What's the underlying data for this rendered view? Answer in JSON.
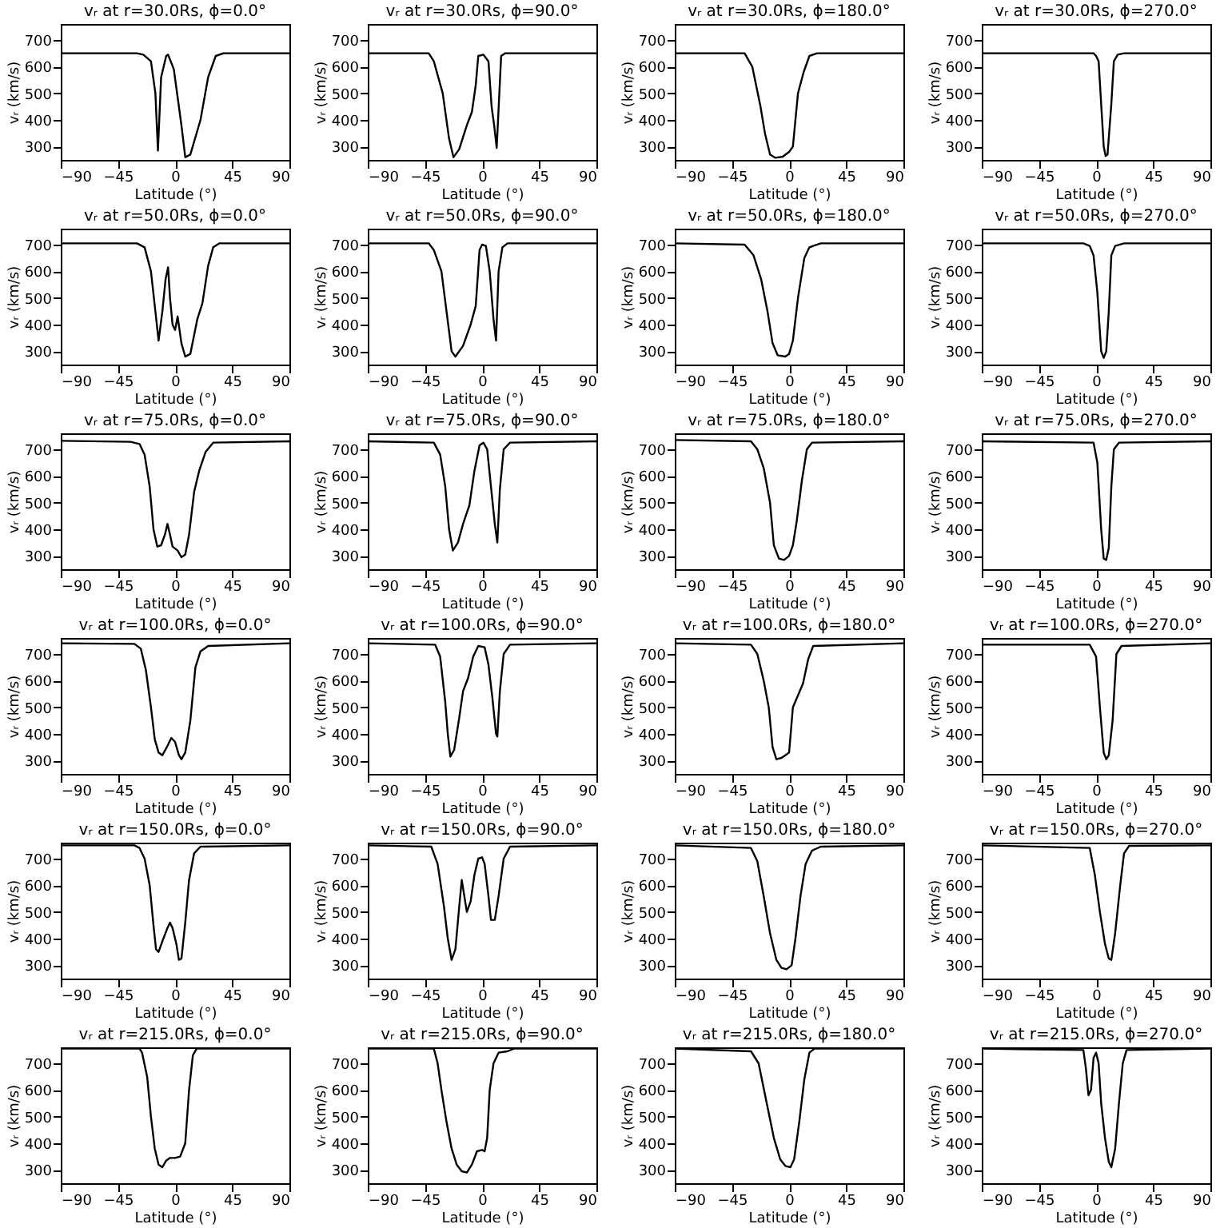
{
  "chart_data": [
    {
      "type": "line",
      "title": "vᵣ at r=30.0Rs, ϕ=0.0°",
      "xlabel": "Latitude (°)",
      "ylabel": "vᵣ (km/s)",
      "xlim": [
        -90,
        90
      ],
      "xticks": [
        -90,
        -45,
        0,
        45,
        90
      ],
      "ylim": [
        250,
        760
      ],
      "yticks": [
        300,
        400,
        500,
        600,
        700
      ],
      "x": [
        -90,
        -30,
        -25,
        -19,
        -15.5,
        -13.5,
        -11,
        -7,
        -5.5,
        -1,
        1,
        5,
        8,
        12,
        20,
        26,
        32,
        38,
        90
      ],
      "values": [
        650,
        650,
        645,
        620,
        500,
        285,
        560,
        640,
        645,
        590,
        520,
        380,
        260,
        270,
        400,
        560,
        640,
        650,
        650
      ]
    },
    {
      "type": "line",
      "title": "vᵣ at r=30.0Rs, ϕ=90.0°",
      "xlabel": "Latitude (°)",
      "ylabel": "vᵣ (km/s)",
      "xlim": [
        -90,
        90
      ],
      "xticks": [
        -90,
        -45,
        0,
        45,
        90
      ],
      "ylim": [
        250,
        760
      ],
      "yticks": [
        300,
        400,
        500,
        600,
        700
      ],
      "x": [
        -90,
        -42,
        -38,
        -31,
        -26,
        -22.5,
        -18,
        -12,
        -8,
        -5,
        -3,
        1,
        5,
        7.5,
        9.5,
        11.5,
        15,
        18,
        90
      ],
      "values": [
        650,
        650,
        620,
        500,
        330,
        260,
        290,
        380,
        430,
        530,
        640,
        645,
        620,
        450,
        380,
        295,
        640,
        650,
        650
      ]
    },
    {
      "type": "line",
      "title": "vᵣ at r=30.0Rs, ϕ=180.0°",
      "xlabel": "Latitude (°)",
      "ylabel": "vᵣ (km/s)",
      "xlim": [
        -90,
        90
      ],
      "xticks": [
        -90,
        -45,
        0,
        45,
        90
      ],
      "ylim": [
        250,
        760
      ],
      "yticks": [
        300,
        400,
        500,
        600,
        700
      ],
      "x": [
        -90,
        -35,
        -29,
        -22.5,
        -19,
        -15,
        -11,
        -5,
        0,
        3,
        7,
        11.5,
        16,
        22,
        90
      ],
      "values": [
        650,
        650,
        600,
        450,
        350,
        270,
        258,
        262,
        280,
        300,
        500,
        580,
        640,
        650,
        650
      ]
    },
    {
      "type": "line",
      "title": "vᵣ at r=30.0Rs, ϕ=270.0°",
      "xlabel": "Latitude (°)",
      "ylabel": "vᵣ (km/s)",
      "xlim": [
        -90,
        90
      ],
      "xticks": [
        -90,
        -45,
        0,
        45,
        90
      ],
      "ylim": [
        250,
        760
      ],
      "yticks": [
        300,
        400,
        500,
        600,
        700
      ],
      "x": [
        -90,
        -2,
        0,
        2,
        4,
        6,
        7.5,
        9,
        12,
        14,
        17,
        22,
        90
      ],
      "values": [
        650,
        650,
        640,
        620,
        460,
        300,
        265,
        270,
        460,
        620,
        645,
        650,
        650
      ]
    },
    {
      "type": "line",
      "title": "vᵣ at r=50.0Rs, ϕ=0.0°",
      "xlabel": "Latitude (°)",
      "ylabel": "vᵣ (km/s)",
      "xlim": [
        -90,
        90
      ],
      "xticks": [
        -90,
        -45,
        0,
        45,
        90
      ],
      "ylim": [
        250,
        760
      ],
      "yticks": [
        300,
        400,
        500,
        600,
        700
      ],
      "x": [
        -90,
        -30,
        -24,
        -19,
        -15.5,
        -13,
        -10,
        -7.5,
        -5.5,
        -4,
        -2,
        0,
        2,
        3.5,
        5,
        8,
        12,
        17.5,
        21.5,
        26,
        30,
        35,
        90
      ],
      "values": [
        705,
        705,
        690,
        600,
        450,
        340,
        450,
        570,
        615,
        500,
        400,
        380,
        430,
        380,
        330,
        280,
        290,
        420,
        480,
        620,
        690,
        705,
        705
      ]
    },
    {
      "type": "line",
      "title": "vᵣ at r=50.0Rs, ϕ=90.0°",
      "xlabel": "Latitude (°)",
      "ylabel": "vᵣ (km/s)",
      "xlim": [
        -90,
        90
      ],
      "xticks": [
        -90,
        -45,
        0,
        45,
        90
      ],
      "ylim": [
        250,
        760
      ],
      "yticks": [
        300,
        400,
        500,
        600,
        700
      ],
      "x": [
        -90,
        -42,
        -38,
        -32,
        -28,
        -24,
        -21,
        -15,
        -9,
        -5,
        -2,
        0,
        3,
        6,
        9,
        11,
        13,
        16,
        20,
        90
      ],
      "values": [
        705,
        705,
        680,
        600,
        450,
        300,
        280,
        320,
        400,
        470,
        680,
        700,
        695,
        600,
        420,
        340,
        600,
        690,
        705,
        705
      ]
    },
    {
      "type": "line",
      "title": "vᵣ at r=50.0Rs, ϕ=180.0°",
      "xlabel": "Latitude (°)",
      "ylabel": "vᵣ (km/s)",
      "xlim": [
        -90,
        90
      ],
      "xticks": [
        -90,
        -45,
        0,
        45,
        90
      ],
      "ylim": [
        250,
        760
      ],
      "yticks": [
        300,
        400,
        500,
        600,
        700
      ],
      "x": [
        -90,
        -35,
        -28,
        -22,
        -17,
        -13,
        -9,
        -3,
        0,
        3,
        7,
        12,
        16,
        25,
        90
      ],
      "values": [
        705,
        700,
        660,
        570,
        450,
        330,
        285,
        280,
        290,
        340,
        500,
        650,
        690,
        705,
        705
      ]
    },
    {
      "type": "line",
      "title": "vᵣ at r=50.0Rs, ϕ=270.0°",
      "xlabel": "Latitude (°)",
      "ylabel": "vᵣ (km/s)",
      "xlim": [
        -90,
        90
      ],
      "xticks": [
        -90,
        -45,
        0,
        45,
        90
      ],
      "ylim": [
        250,
        760
      ],
      "yticks": [
        300,
        400,
        500,
        600,
        700
      ],
      "x": [
        -90,
        -10,
        -5,
        -2,
        1,
        4,
        6,
        8,
        10,
        12,
        15,
        22,
        90
      ],
      "values": [
        705,
        705,
        695,
        660,
        520,
        300,
        275,
        300,
        450,
        660,
        695,
        705,
        705
      ]
    },
    {
      "type": "line",
      "title": "vᵣ at r=75.0Rs, ϕ=0.0°",
      "xlabel": "Latitude (°)",
      "ylabel": "vᵣ (km/s)",
      "xlim": [
        -90,
        90
      ],
      "xticks": [
        -90,
        -45,
        0,
        45,
        90
      ],
      "ylim": [
        250,
        760
      ],
      "yticks": [
        300,
        400,
        500,
        600,
        700
      ],
      "x": [
        -90,
        -35,
        -28,
        -24,
        -20,
        -17,
        -14,
        -11,
        -8,
        -6,
        -4,
        -2,
        2,
        5,
        8,
        11,
        15,
        19,
        24,
        30,
        90
      ],
      "values": [
        732,
        728,
        720,
        680,
        560,
        400,
        335,
        340,
        380,
        420,
        380,
        335,
        320,
        295,
        305,
        380,
        540,
        620,
        690,
        725,
        730
      ]
    },
    {
      "type": "line",
      "title": "vᵣ at r=75.0Rs, ϕ=90.0°",
      "xlabel": "Latitude (°)",
      "ylabel": "vᵣ (km/s)",
      "xlim": [
        -90,
        90
      ],
      "xticks": [
        -90,
        -45,
        0,
        45,
        90
      ],
      "ylim": [
        250,
        760
      ],
      "yticks": [
        300,
        400,
        500,
        600,
        700
      ],
      "x": [
        -90,
        -38,
        -33,
        -29,
        -26,
        -23,
        -19,
        -15,
        -10,
        -6,
        -2,
        1,
        4,
        7,
        10,
        12,
        14,
        17,
        22,
        90
      ],
      "values": [
        730,
        725,
        680,
        560,
        400,
        320,
        350,
        420,
        490,
        620,
        715,
        725,
        700,
        560,
        420,
        350,
        550,
        700,
        725,
        730
      ]
    },
    {
      "type": "line",
      "title": "vᵣ at r=75.0Rs, ϕ=180.0°",
      "xlabel": "Latitude (°)",
      "ylabel": "vᵣ (km/s)",
      "xlim": [
        -90,
        90
      ],
      "xticks": [
        -90,
        -45,
        0,
        45,
        90
      ],
      "ylim": [
        250,
        760
      ],
      "yticks": [
        300,
        400,
        500,
        600,
        700
      ],
      "x": [
        -90,
        -30,
        -25,
        -20,
        -15,
        -12,
        -8,
        -4,
        0,
        3,
        6,
        10,
        14,
        18,
        90
      ],
      "values": [
        735,
        730,
        700,
        630,
        500,
        340,
        290,
        285,
        300,
        340,
        430,
        580,
        700,
        725,
        730
      ]
    },
    {
      "type": "line",
      "title": "vᵣ at r=75.0Rs, ϕ=270.0°",
      "xlabel": "Latitude (°)",
      "ylabel": "vᵣ (km/s)",
      "xlim": [
        -90,
        90
      ],
      "xticks": [
        -90,
        -45,
        0,
        45,
        90
      ],
      "ylim": [
        250,
        760
      ],
      "yticks": [
        300,
        400,
        500,
        600,
        700
      ],
      "x": [
        -90,
        -2,
        1,
        4,
        6,
        8,
        10,
        12,
        14,
        18,
        90
      ],
      "values": [
        730,
        725,
        650,
        400,
        290,
        285,
        330,
        560,
        700,
        725,
        730
      ]
    },
    {
      "type": "line",
      "title": "vᵣ at r=100.0Rs, ϕ=0.0°",
      "xlabel": "Latitude (°)",
      "ylabel": "vᵣ (km/s)",
      "xlim": [
        -90,
        90
      ],
      "xticks": [
        -90,
        -45,
        0,
        45,
        90
      ],
      "ylim": [
        250,
        760
      ],
      "yticks": [
        300,
        400,
        500,
        600,
        700
      ],
      "x": [
        -90,
        -32,
        -27,
        -23,
        -19,
        -16,
        -13,
        -10,
        -6,
        -3,
        0,
        3,
        5,
        8,
        12,
        16,
        20,
        26,
        90
      ],
      "values": [
        740,
        738,
        720,
        640,
        500,
        380,
        330,
        320,
        355,
        385,
        370,
        320,
        305,
        330,
        450,
        650,
        710,
        730,
        740
      ]
    },
    {
      "type": "line",
      "title": "vᵣ at r=100.0Rs, ϕ=90.0°",
      "xlabel": "Latitude (°)",
      "ylabel": "vᵣ (km/s)",
      "xlim": [
        -90,
        90
      ],
      "xticks": [
        -90,
        -45,
        0,
        45,
        90
      ],
      "ylim": [
        250,
        760
      ],
      "yticks": [
        300,
        400,
        500,
        600,
        700
      ],
      "x": [
        -90,
        -37,
        -33,
        -29,
        -27,
        -25,
        -22,
        -18,
        -15,
        -11,
        -7,
        -3,
        2,
        5,
        8,
        11,
        12,
        14,
        17,
        22,
        90
      ],
      "values": [
        740,
        735,
        690,
        520,
        400,
        315,
        340,
        460,
        560,
        610,
        690,
        730,
        725,
        660,
        540,
        400,
        390,
        560,
        700,
        735,
        740
      ]
    },
    {
      "type": "line",
      "title": "vᵣ at r=100.0Rs, ϕ=180.0°",
      "xlabel": "Latitude (°)",
      "ylabel": "vᵣ (km/s)",
      "xlim": [
        -90,
        90
      ],
      "xticks": [
        -90,
        -45,
        0,
        45,
        90
      ],
      "ylim": [
        250,
        760
      ],
      "yticks": [
        300,
        400,
        500,
        600,
        700
      ],
      "x": [
        -90,
        -30,
        -25,
        -20,
        -16,
        -13,
        -10,
        -6,
        -3,
        0,
        3,
        7,
        11,
        15,
        19,
        90
      ],
      "values": [
        740,
        735,
        700,
        600,
        500,
        350,
        305,
        310,
        320,
        330,
        500,
        545,
        590,
        680,
        730,
        740
      ]
    },
    {
      "type": "line",
      "title": "vᵣ at r=100.0Rs, ϕ=270.0°",
      "xlabel": "Latitude (°)",
      "ylabel": "vᵣ (km/s)",
      "xlim": [
        -90,
        90
      ],
      "xticks": [
        -90,
        -45,
        0,
        45,
        90
      ],
      "ylim": [
        250,
        760
      ],
      "yticks": [
        300,
        400,
        500,
        600,
        700
      ],
      "x": [
        -90,
        -5,
        0,
        3,
        6,
        8,
        10,
        13,
        16,
        20,
        90
      ],
      "values": [
        735,
        735,
        690,
        500,
        330,
        305,
        320,
        450,
        700,
        730,
        740
      ]
    },
    {
      "type": "line",
      "title": "vᵣ at r=150.0Rs, ϕ=0.0°",
      "xlabel": "Latitude (°)",
      "ylabel": "vᵣ (km/s)",
      "xlim": [
        -90,
        90
      ],
      "xticks": [
        -90,
        -45,
        0,
        45,
        90
      ],
      "ylim": [
        250,
        760
      ],
      "yticks": [
        300,
        400,
        500,
        600,
        700
      ],
      "x": [
        -90,
        -32,
        -28,
        -24,
        -20,
        -17,
        -15,
        -13,
        -10,
        -6,
        -4,
        -2,
        1,
        3,
        5,
        8,
        11,
        15,
        20,
        90
      ],
      "values": [
        750,
        750,
        740,
        700,
        600,
        450,
        360,
        350,
        390,
        440,
        460,
        440,
        380,
        320,
        325,
        460,
        620,
        720,
        745,
        750
      ]
    },
    {
      "type": "line",
      "title": "vᵣ at r=150.0Rs, ϕ=90.0°",
      "xlabel": "Latitude (°)",
      "ylabel": "vᵣ (km/s)",
      "xlim": [
        -90,
        90
      ],
      "xticks": [
        -90,
        -45,
        0,
        45,
        90
      ],
      "ylim": [
        250,
        760
      ],
      "yticks": [
        300,
        400,
        500,
        600,
        700
      ],
      "x": [
        -90,
        -40,
        -35,
        -30,
        -27,
        -24,
        -21,
        -18,
        -16,
        -14,
        -12,
        -9,
        -6,
        -3,
        0,
        2,
        5,
        7,
        10,
        13,
        17,
        22,
        90
      ],
      "values": [
        750,
        745,
        680,
        520,
        400,
        320,
        360,
        520,
        620,
        560,
        500,
        540,
        640,
        700,
        705,
        680,
        560,
        470,
        470,
        560,
        700,
        745,
        750
      ]
    },
    {
      "type": "line",
      "title": "vᵣ at r=150.0Rs, ϕ=180.0°",
      "xlabel": "Latitude (°)",
      "ylabel": "vᵣ (km/s)",
      "xlim": [
        -90,
        90
      ],
      "xticks": [
        -90,
        -45,
        0,
        45,
        90
      ],
      "ylim": [
        250,
        760
      ],
      "yticks": [
        300,
        400,
        500,
        600,
        700
      ],
      "x": [
        -90,
        -30,
        -25,
        -20,
        -15,
        -10,
        -6,
        -2,
        2,
        5,
        9,
        13,
        18,
        25,
        90
      ],
      "values": [
        750,
        740,
        690,
        560,
        420,
        320,
        290,
        285,
        300,
        400,
        560,
        680,
        730,
        745,
        750
      ]
    },
    {
      "type": "line",
      "title": "vᵣ at r=150.0Rs, ϕ=270.0°",
      "xlabel": "Latitude (°)",
      "ylabel": "vᵣ (km/s)",
      "xlim": [
        -90,
        90
      ],
      "xticks": [
        -90,
        -45,
        0,
        45,
        90
      ],
      "ylim": [
        250,
        760
      ],
      "yticks": [
        300,
        400,
        500,
        600,
        700
      ],
      "x": [
        -90,
        -5,
        -1,
        3,
        7,
        10,
        12,
        15,
        19,
        22,
        26,
        90
      ],
      "values": [
        750,
        740,
        640,
        500,
        380,
        325,
        320,
        420,
        600,
        720,
        748,
        750
      ]
    },
    {
      "type": "line",
      "title": "vᵣ at r=215.0Rs, ϕ=0.0°",
      "xlabel": "Latitude (°)",
      "ylabel": "vᵣ (km/s)",
      "xlim": [
        -90,
        90
      ],
      "xticks": [
        -90,
        -45,
        0,
        45,
        90
      ],
      "ylim": [
        250,
        760
      ],
      "yticks": [
        300,
        400,
        500,
        600,
        700
      ],
      "x": [
        -90,
        -28,
        -26,
        -22,
        -19,
        -16,
        -13,
        -10,
        -7,
        -4,
        0,
        4,
        8,
        11,
        14,
        17,
        90
      ],
      "values": [
        755,
        755,
        740,
        650,
        500,
        380,
        320,
        310,
        335,
        345,
        345,
        350,
        400,
        600,
        730,
        755,
        755
      ]
    },
    {
      "type": "line",
      "title": "vᵣ at r=215.0Rs, ϕ=90.0°",
      "xlabel": "Latitude (°)",
      "ylabel": "vᵣ (km/s)",
      "xlim": [
        -90,
        90
      ],
      "xticks": [
        -90,
        -45,
        0,
        45,
        90
      ],
      "ylim": [
        250,
        760
      ],
      "yticks": [
        300,
        400,
        500,
        600,
        700
      ],
      "x": [
        -90,
        -38,
        -35,
        -32,
        -28,
        -24,
        -20,
        -16,
        -12,
        -8,
        -4,
        0,
        2,
        4,
        6,
        9,
        13,
        20,
        25,
        90
      ],
      "values": [
        755,
        755,
        700,
        600,
        480,
        380,
        320,
        295,
        290,
        320,
        370,
        375,
        370,
        420,
        600,
        700,
        740,
        745,
        755,
        755
      ]
    },
    {
      "type": "line",
      "title": "vᵣ at r=215.0Rs, ϕ=180.0°",
      "xlabel": "Latitude (°)",
      "ylabel": "vᵣ (km/s)",
      "xlim": [
        -90,
        90
      ],
      "xticks": [
        -90,
        -45,
        0,
        45,
        90
      ],
      "ylim": [
        250,
        760
      ],
      "yticks": [
        300,
        400,
        500,
        600,
        700
      ],
      "x": [
        -90,
        -30,
        -24,
        -18,
        -12,
        -7,
        -3,
        1,
        4,
        8,
        12,
        16,
        20,
        90
      ],
      "values": [
        755,
        745,
        700,
        560,
        420,
        340,
        315,
        310,
        340,
        480,
        640,
        740,
        755,
        755
      ]
    },
    {
      "type": "line",
      "title": "vᵣ at r=215.0Rs, ϕ=270.0°",
      "xlabel": "Latitude (°)",
      "ylabel": "vᵣ (km/s)",
      "xlim": [
        -90,
        90
      ],
      "xticks": [
        -90,
        -45,
        0,
        45,
        90
      ],
      "ylim": [
        250,
        760
      ],
      "yticks": [
        300,
        400,
        500,
        600,
        700
      ],
      "x": [
        -90,
        -10,
        -8,
        -6,
        -4,
        -2,
        0,
        2,
        4,
        7,
        10,
        12,
        15,
        18,
        21,
        24,
        90
      ],
      "values": [
        755,
        750,
        680,
        580,
        600,
        720,
        740,
        700,
        550,
        420,
        330,
        310,
        380,
        550,
        700,
        750,
        755
      ]
    }
  ]
}
